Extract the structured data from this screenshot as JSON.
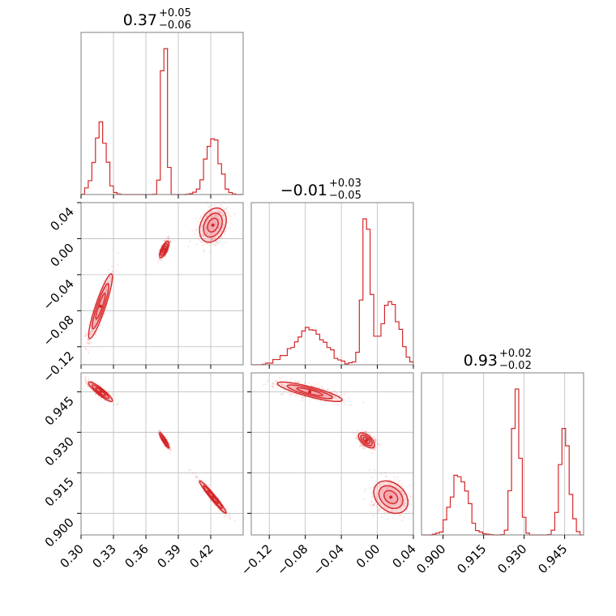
{
  "chart_data": {
    "type": "corner",
    "color": "#d62728",
    "fill_color": "#f4a5ae",
    "grid": true,
    "parameters": [
      {
        "range": [
          0.3,
          0.45
        ],
        "ticks": [
          0.3,
          0.33,
          0.36,
          0.39,
          0.42
        ],
        "tick_labels": [
          "0.30",
          "0.33",
          "0.36",
          "0.39",
          "0.42"
        ]
      },
      {
        "range": [
          -0.14,
          0.04
        ],
        "ticks": [
          -0.12,
          -0.08,
          -0.04,
          0.0,
          0.04
        ],
        "tick_labels": [
          "−0.12",
          "−0.08",
          "−0.04",
          "0.00",
          "0.04"
        ]
      },
      {
        "range": [
          0.892,
          0.952
        ],
        "ticks": [
          0.9,
          0.915,
          0.93,
          0.945
        ],
        "tick_labels": [
          "0.900",
          "0.915",
          "0.930",
          "0.945"
        ]
      }
    ],
    "titles": [
      {
        "value": "0.37",
        "plus": "+0.05",
        "minus": "−0.06"
      },
      {
        "value": "−0.01",
        "plus": "+0.03",
        "minus": "−0.05"
      },
      {
        "value": "0.93",
        "plus": "+0.02",
        "minus": "−0.02"
      }
    ],
    "modes": [
      {
        "p0": 0.318,
        "p1": -0.075,
        "p2": 0.945,
        "weight": 0.32
      },
      {
        "p0": 0.377,
        "p1": -0.012,
        "p2": 0.927,
        "weight": 0.36
      },
      {
        "p0": 0.422,
        "p1": 0.015,
        "p2": 0.906,
        "weight": 0.32
      }
    ]
  }
}
